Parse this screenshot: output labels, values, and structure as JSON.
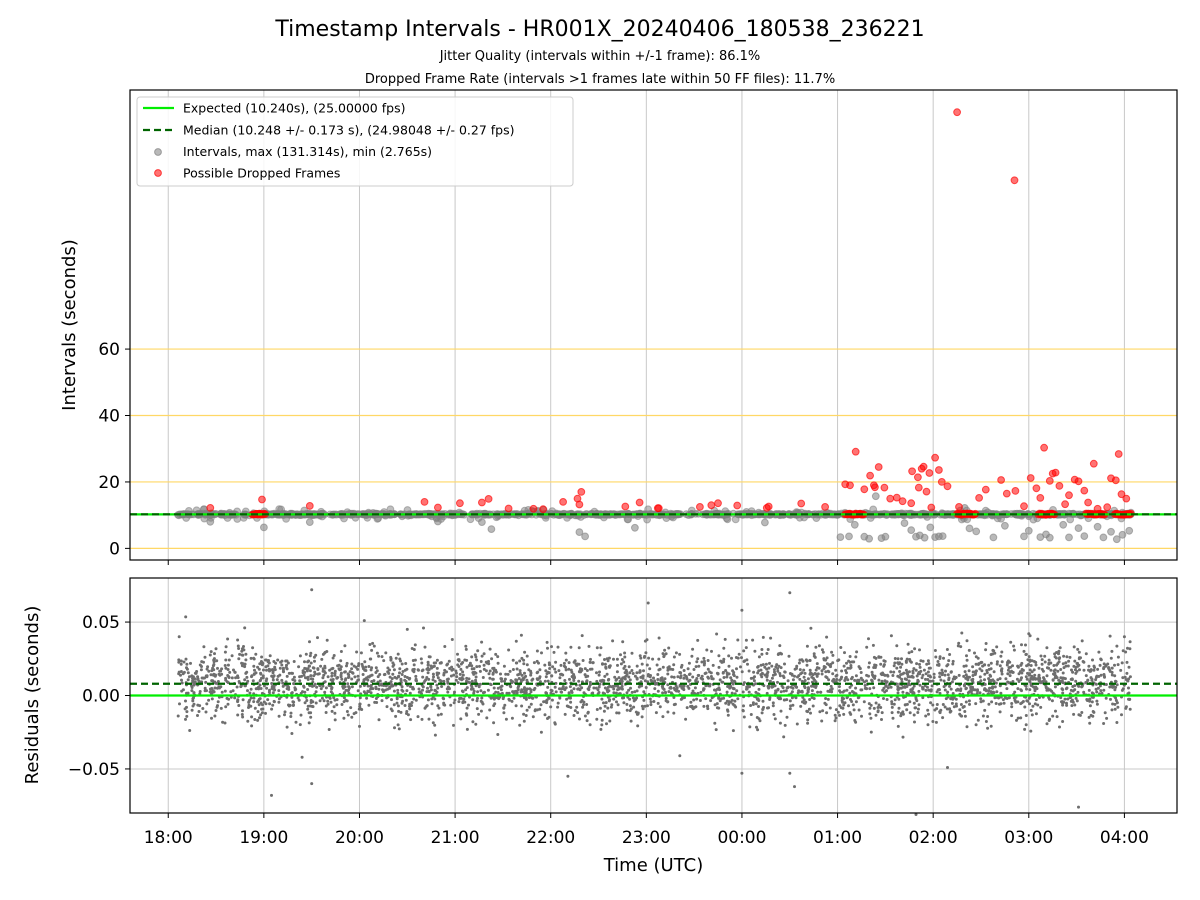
{
  "figure": {
    "title": "Timestamp Intervals - HR001X_20240406_180538_236221",
    "subtitle_1": "Jitter Quality (intervals within +/-1 frame): 86.1%",
    "subtitle_2": "Dropped Frame Rate (intervals >1 frames late within 50 FF files): 11.7%",
    "xlabel": "Time (UTC)"
  },
  "colors": {
    "expected": "#00ee00",
    "median": "#006400",
    "intervals": "#808080",
    "dropped": "#ff0000",
    "hgrid_top": "#ffd866",
    "grid": "#c8c8c8"
  },
  "legend": {
    "expected": "Expected (10.240s), (25.00000 fps)",
    "median": "Median (10.248 +/- 0.173 s), (24.98048 +/- 0.27 fps)",
    "intervals": "Intervals, max (131.314s), min (2.765s)",
    "dropped": "Possible Dropped Frames"
  },
  "chart_data": [
    {
      "type": "scatter",
      "panel": "top",
      "ylabel": "Intervals (seconds)",
      "x_unit": "hours since 18:00 UTC",
      "xlim": [
        -0.4,
        10.55
      ],
      "ylim": [
        -3.5,
        138
      ],
      "yticks": [
        0,
        20,
        40,
        60
      ],
      "ytick_labels": [
        "0",
        "20",
        "40",
        "60"
      ],
      "xticks": [
        0,
        1,
        2,
        3,
        4,
        5,
        6,
        7,
        8,
        9,
        10
      ],
      "xtick_labels": [
        "18:00",
        "19:00",
        "20:00",
        "21:00",
        "22:00",
        "23:00",
        "00:00",
        "01:00",
        "02:00",
        "03:00",
        "04:00"
      ],
      "grid": true,
      "legend_position": "top-left",
      "expected_interval": 10.24,
      "median_interval": 10.248,
      "max_interval": 131.314,
      "min_interval": 2.765,
      "series": [
        {
          "name": "Possible Dropped Frames",
          "points": [
            [
              0.44,
              12.2
            ],
            [
              0.98,
              14.7
            ],
            [
              0.92,
              10.4
            ],
            [
              0.95,
              10.4
            ],
            [
              1.48,
              12.8
            ],
            [
              2.68,
              14.0
            ],
            [
              2.82,
              12.3
            ],
            [
              3.05,
              13.6
            ],
            [
              3.28,
              13.8
            ],
            [
              3.35,
              14.9
            ],
            [
              3.56,
              12.0
            ],
            [
              3.82,
              11.9
            ],
            [
              3.92,
              11.8
            ],
            [
              4.13,
              14.0
            ],
            [
              4.28,
              15.0
            ],
            [
              4.3,
              13.2
            ],
            [
              4.32,
              17.0
            ],
            [
              4.78,
              12.6
            ],
            [
              4.93,
              13.8
            ],
            [
              5.12,
              12.1
            ],
            [
              5.13,
              12.1
            ],
            [
              5.56,
              12.5
            ],
            [
              5.68,
              13.0
            ],
            [
              5.75,
              13.6
            ],
            [
              5.95,
              12.9
            ],
            [
              6.26,
              12.2
            ],
            [
              6.28,
              12.6
            ],
            [
              6.62,
              13.5
            ],
            [
              6.87,
              12.5
            ],
            [
              7.08,
              19.3
            ],
            [
              7.13,
              19.0
            ],
            [
              7.19,
              29.1
            ],
            [
              7.28,
              17.8
            ],
            [
              7.34,
              21.9
            ],
            [
              7.38,
              19.0
            ],
            [
              7.39,
              18.4
            ],
            [
              7.43,
              24.5
            ],
            [
              7.49,
              18.3
            ],
            [
              7.55,
              15.0
            ],
            [
              7.62,
              15.3
            ],
            [
              7.68,
              14.2
            ],
            [
              7.77,
              13.6
            ],
            [
              7.78,
              23.2
            ],
            [
              7.84,
              21.4
            ],
            [
              7.85,
              18.3
            ],
            [
              7.88,
              24.0
            ],
            [
              7.9,
              24.6
            ],
            [
              7.93,
              17.1
            ],
            [
              7.96,
              22.7
            ],
            [
              7.98,
              12.3
            ],
            [
              8.02,
              27.3
            ],
            [
              8.06,
              23.6
            ],
            [
              8.09,
              20.0
            ],
            [
              8.15,
              18.7
            ],
            [
              8.25,
              131.314
            ],
            [
              8.27,
              12.5
            ],
            [
              8.48,
              15.2
            ],
            [
              8.55,
              17.7
            ],
            [
              8.71,
              20.6
            ],
            [
              8.77,
              16.5
            ],
            [
              8.86,
              17.3
            ],
            [
              8.95,
              12.7
            ],
            [
              9.02,
              21.2
            ],
            [
              9.08,
              18.1
            ],
            [
              9.12,
              15.2
            ],
            [
              9.16,
              30.3
            ],
            [
              9.22,
              20.3
            ],
            [
              9.25,
              22.5
            ],
            [
              9.28,
              22.8
            ],
            [
              9.32,
              18.8
            ],
            [
              9.38,
              13.3
            ],
            [
              9.42,
              16.0
            ],
            [
              9.48,
              20.7
            ],
            [
              9.52,
              20.2
            ],
            [
              9.58,
              17.4
            ],
            [
              9.62,
              13.8
            ],
            [
              9.68,
              25.5
            ],
            [
              9.72,
              11.9
            ],
            [
              9.82,
              12.4
            ],
            [
              9.86,
              21.1
            ],
            [
              9.91,
              20.5
            ],
            [
              9.94,
              28.4
            ],
            [
              9.97,
              16.3
            ],
            [
              10.02,
              15.0
            ],
            [
              8.85,
              110.8
            ]
          ],
          "dense_runs": [
            {
              "x_from": 0.88,
              "x_to": 1.02,
              "y": 10.3
            },
            {
              "x_from": 7.08,
              "x_to": 7.28,
              "y": 10.3
            },
            {
              "x_from": 8.25,
              "x_to": 8.45,
              "y": 10.3
            },
            {
              "x_from": 9.1,
              "x_to": 9.28,
              "y": 10.3
            },
            {
              "x_from": 9.6,
              "x_to": 9.8,
              "y": 10.3
            },
            {
              "x_from": 9.9,
              "x_to": 10.07,
              "y": 10.3
            }
          ]
        },
        {
          "name": "Intervals, max (131.314s), min (2.765s)",
          "x_range": [
            0.1,
            10.07
          ],
          "baseline": 10.24,
          "low_points": [
            [
              0.44,
              8.0
            ],
            [
              1.0,
              6.3
            ],
            [
              1.48,
              7.9
            ],
            [
              2.82,
              8.1
            ],
            [
              3.28,
              7.9
            ],
            [
              3.38,
              5.8
            ],
            [
              4.3,
              4.9
            ],
            [
              4.36,
              3.6
            ],
            [
              4.88,
              6.2
            ],
            [
              6.24,
              7.8
            ],
            [
              7.03,
              3.4
            ],
            [
              7.12,
              3.6
            ],
            [
              7.18,
              7.1
            ],
            [
              7.28,
              3.5
            ],
            [
              7.33,
              2.9
            ],
            [
              7.46,
              3.1
            ],
            [
              7.5,
              3.5
            ],
            [
              7.7,
              7.6
            ],
            [
              7.77,
              5.5
            ],
            [
              7.82,
              3.5
            ],
            [
              7.86,
              3.9
            ],
            [
              7.91,
              3.2
            ],
            [
              7.97,
              6.3
            ],
            [
              8.02,
              3.4
            ],
            [
              8.06,
              3.6
            ],
            [
              8.1,
              3.7
            ],
            [
              8.38,
              6.0
            ],
            [
              8.45,
              5.1
            ],
            [
              8.63,
              3.3
            ],
            [
              8.75,
              6.8
            ],
            [
              8.95,
              3.6
            ],
            [
              9.0,
              5.3
            ],
            [
              9.12,
              3.4
            ],
            [
              9.18,
              4.2
            ],
            [
              9.22,
              3.2
            ],
            [
              9.36,
              7.1
            ],
            [
              9.42,
              3.3
            ],
            [
              9.52,
              6.1
            ],
            [
              9.58,
              3.7
            ],
            [
              9.72,
              6.5
            ],
            [
              9.78,
              3.3
            ],
            [
              9.86,
              5.0
            ],
            [
              9.92,
              2.765
            ],
            [
              9.98,
              4.1
            ],
            [
              10.05,
              5.3
            ],
            [
              7.4,
              15.7
            ],
            [
              8.33,
              12.2
            ],
            [
              9.0,
              9.7
            ]
          ]
        }
      ]
    },
    {
      "type": "scatter",
      "panel": "bottom",
      "ylabel": "Residuals (seconds)",
      "xlim": [
        -0.4,
        10.55
      ],
      "ylim": [
        -0.08,
        0.08
      ],
      "yticks": [
        -0.05,
        0.0,
        0.05
      ],
      "ytick_labels": [
        "−0.05",
        "0.00",
        "0.05"
      ],
      "grid": true,
      "expected_line": 0.0,
      "median_line": 0.008,
      "series": [
        {
          "name": "residuals",
          "x_range": [
            0.1,
            10.07
          ],
          "mean": 0.008,
          "std": 0.012,
          "count": 3500,
          "outliers": [
            [
              1.5,
              0.072
            ],
            [
              1.08,
              -0.068
            ],
            [
              1.5,
              -0.06
            ],
            [
              4.18,
              -0.055
            ],
            [
              6.0,
              -0.053
            ],
            [
              6.5,
              -0.053
            ],
            [
              6.5,
              0.07
            ],
            [
              5.02,
              0.063
            ],
            [
              8.15,
              -0.049
            ],
            [
              6.0,
              0.058
            ],
            [
              9.52,
              -0.076
            ],
            [
              7.82,
              -0.081
            ],
            [
              0.8,
              0.046
            ],
            [
              2.05,
              0.051
            ],
            [
              6.55,
              -0.062
            ],
            [
              5.35,
              -0.041
            ],
            [
              2.5,
              0.045
            ],
            [
              1.4,
              -0.042
            ],
            [
              9.0,
              0.042
            ],
            [
              10.0,
              0.04
            ]
          ]
        }
      ]
    }
  ]
}
